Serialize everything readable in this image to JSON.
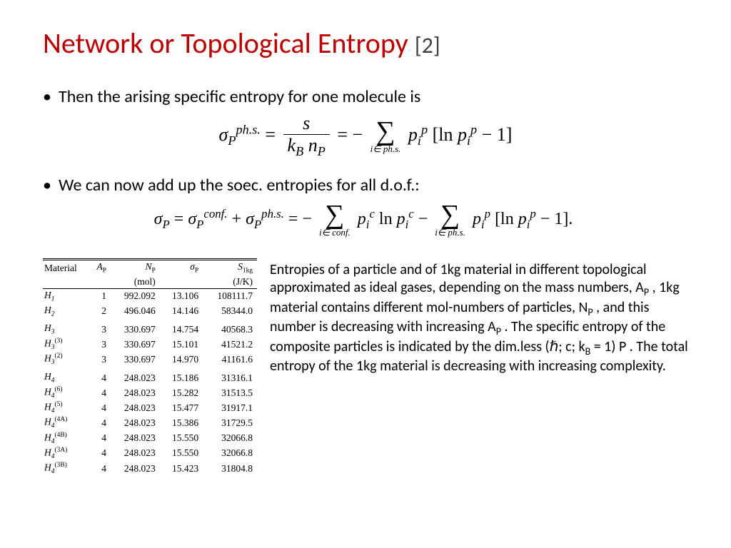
{
  "title": {
    "main": "Network or Topological Entropy",
    "ref": "[2]"
  },
  "bullets": {
    "b1": "Then the arising specific entropy for one molecule is",
    "b2": "We can now add up the soec. entropies for all d.o.f.:"
  },
  "eq1": {
    "lhs_sigma": "σ",
    "lhs_P": "P",
    "lhs_sup": "ph.s.",
    "eq": " = ",
    "s": "s",
    "den_kB": "k",
    "den_B": "B",
    "den_nP": " n",
    "den_P": "P",
    "eq2": " = − ",
    "sum_sub": "i∈  ph.s.",
    "term_p": "p",
    "term_i": "i",
    "term_sup_p": "p",
    "bracket": "[ln ",
    "minus1": " − 1]"
  },
  "eq2": {
    "lhs": "σ",
    "P": "P",
    "eq": " = ",
    "conf_sup": "conf.",
    "phs_sup": "ph.s.",
    "plus": " + ",
    "eq2": " = − ",
    "sum1_sub": "i∈  conf.",
    "sum2_sub": "i∈  ph.s.",
    "term_p": "p",
    "term_i": "i",
    "sup_c": "c",
    "sup_p": "p",
    "ln": " ln ",
    "minus": " − ",
    "br_open": "[ln ",
    "br_close": " − 1]."
  },
  "table": {
    "headers": {
      "c0": "Material",
      "c1": "A",
      "c1s": "P",
      "c2": "N",
      "c2s": "P",
      "c3": "σ",
      "c3s": "P",
      "c4": "S",
      "c4s": "1kg"
    },
    "units": {
      "c2": "(mol)",
      "c4": "(J/K)"
    },
    "rows": [
      {
        "m": "H",
        "ms": "1",
        "msup": "",
        "a": "1",
        "n": "992.092",
        "s": "13.106",
        "e": "108111.7",
        "group": 0
      },
      {
        "m": "H",
        "ms": "2",
        "msup": "",
        "a": "2",
        "n": "496.046",
        "s": "14.146",
        "e": "58344.0",
        "group": 0
      },
      {
        "m": "H",
        "ms": "3",
        "msup": "",
        "a": "3",
        "n": "330.697",
        "s": "14.754",
        "e": "40568.3",
        "group": 1
      },
      {
        "m": "H",
        "ms": "3",
        "msup": "(3)",
        "a": "3",
        "n": "330.697",
        "s": "15.101",
        "e": "41521.2",
        "group": 1
      },
      {
        "m": "H",
        "ms": "3",
        "msup": "(2)",
        "a": "3",
        "n": "330.697",
        "s": "14.970",
        "e": "41161.6",
        "group": 1
      },
      {
        "m": "H",
        "ms": "4",
        "msup": "",
        "a": "4",
        "n": "248.023",
        "s": "15.186",
        "e": "31316.1",
        "group": 2
      },
      {
        "m": "H",
        "ms": "4",
        "msup": "(6)",
        "a": "4",
        "n": "248.023",
        "s": "15.282",
        "e": "31513.5",
        "group": 2
      },
      {
        "m": "H",
        "ms": "4",
        "msup": "(5)",
        "a": "4",
        "n": "248.023",
        "s": "15.477",
        "e": "31917.1",
        "group": 2
      },
      {
        "m": "H",
        "ms": "4",
        "msup": "(4A)",
        "a": "4",
        "n": "248.023",
        "s": "15.386",
        "e": "31729.5",
        "group": 2
      },
      {
        "m": "H",
        "ms": "4",
        "msup": "(4B)",
        "a": "4",
        "n": "248.023",
        "s": "15.550",
        "e": "32066.8",
        "group": 2
      },
      {
        "m": "H",
        "ms": "4",
        "msup": "(3A)",
        "a": "4",
        "n": "248.023",
        "s": "15.550",
        "e": "32066.8",
        "group": 2
      },
      {
        "m": "H",
        "ms": "4",
        "msup": "(3B)",
        "a": "4",
        "n": "248.023",
        "s": "15.423",
        "e": "31804.8",
        "group": 2
      }
    ]
  },
  "desc": {
    "t1": "Entropies of a particle and of 1kg material in different topological approximated as ideal gases, depending on the mass numbers, A",
    "t1s": "P",
    "t2": " , 1kg material contains different mol-numbers of particles, N",
    "t2s": "P",
    "t3": " , and this number is decreasing with increasing A",
    "t3s": "P",
    "t4": " . The specific entropy of the composite particles is indicated by the    dim.less (ℏ; c; k",
    "t4s": "B",
    "t5": " = 1) P . The total entropy of the 1kg material is decreasing with increasing complexity."
  }
}
